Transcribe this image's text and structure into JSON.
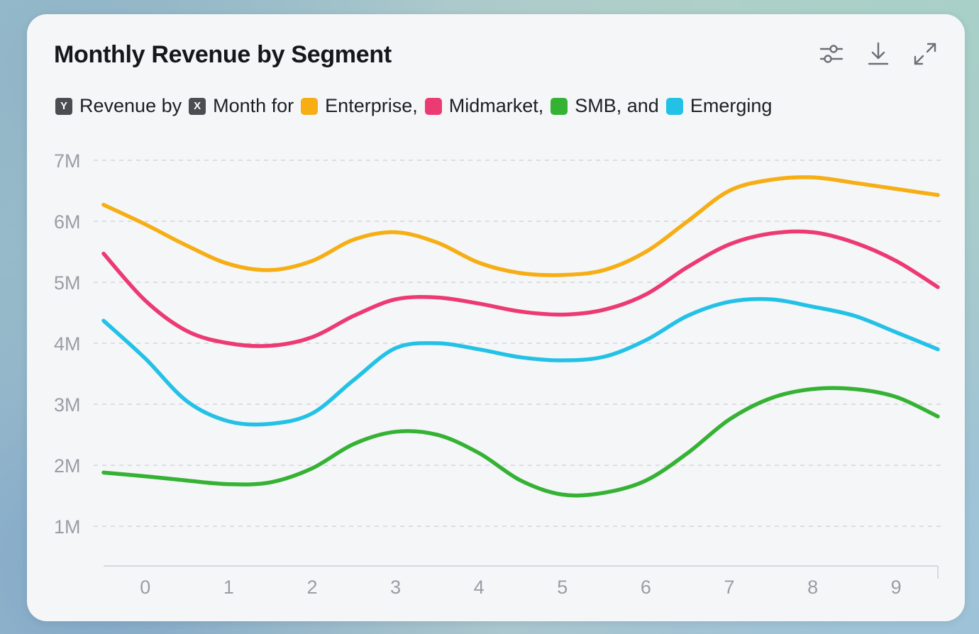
{
  "title": "Monthly Revenue by Segment",
  "toolbar": {
    "icons": [
      "sliders-icon",
      "download-icon",
      "expand-icon"
    ]
  },
  "legend": {
    "y_badge": "Y",
    "y_text": "Revenue by",
    "x_badge": "X",
    "x_text": "Month for",
    "series": [
      {
        "label": "Enterprise,",
        "color": "#f6ae14"
      },
      {
        "label": "Midmarket,",
        "color": "#ec3a73"
      },
      {
        "label": "SMB, and",
        "color": "#35b234"
      },
      {
        "label": "Emerging",
        "color": "#24c1e6"
      }
    ]
  },
  "chart_data": {
    "type": "line",
    "title": "Monthly Revenue by Segment",
    "xlabel": "Month",
    "ylabel": "Revenue",
    "categories": [
      "0",
      "1",
      "2",
      "3",
      "4",
      "5",
      "6",
      "7",
      "8",
      "9"
    ],
    "x": [
      -0.5,
      0,
      0.5,
      1,
      1.5,
      2,
      2.5,
      3,
      3.5,
      4,
      4.5,
      5,
      5.5,
      6,
      6.5,
      7,
      7.5,
      8,
      8.5,
      9,
      9.5
    ],
    "y_ticks": [
      "1M",
      "2M",
      "3M",
      "4M",
      "5M",
      "6M",
      "7M"
    ],
    "ylim": [
      0.35,
      7
    ],
    "xlim": [
      -0.5,
      9.5
    ],
    "grid": true,
    "series": [
      {
        "name": "Enterprise",
        "color": "#f6ae14",
        "values": [
          6.27,
          5.95,
          5.6,
          5.3,
          5.2,
          5.35,
          5.7,
          5.82,
          5.65,
          5.32,
          5.15,
          5.12,
          5.2,
          5.5,
          6.0,
          6.5,
          6.68,
          6.72,
          6.63,
          6.53,
          6.43
        ]
      },
      {
        "name": "Midmarket",
        "color": "#ec3a73",
        "values": [
          5.47,
          4.7,
          4.2,
          4.0,
          3.96,
          4.1,
          4.45,
          4.72,
          4.75,
          4.65,
          4.52,
          4.47,
          4.55,
          4.8,
          5.25,
          5.62,
          5.8,
          5.82,
          5.65,
          5.35,
          4.92
        ]
      },
      {
        "name": "SMB",
        "color": "#35b234",
        "values": [
          1.88,
          1.82,
          1.75,
          1.69,
          1.72,
          1.95,
          2.35,
          2.55,
          2.5,
          2.2,
          1.75,
          1.52,
          1.55,
          1.75,
          2.2,
          2.75,
          3.1,
          3.25,
          3.25,
          3.12,
          2.8
        ]
      },
      {
        "name": "Emerging",
        "color": "#24c1e6",
        "values": [
          4.37,
          3.75,
          3.05,
          2.72,
          2.68,
          2.85,
          3.4,
          3.92,
          4.0,
          3.9,
          3.77,
          3.72,
          3.78,
          4.05,
          4.45,
          4.68,
          4.72,
          4.6,
          4.45,
          4.18,
          3.9
        ]
      }
    ]
  }
}
